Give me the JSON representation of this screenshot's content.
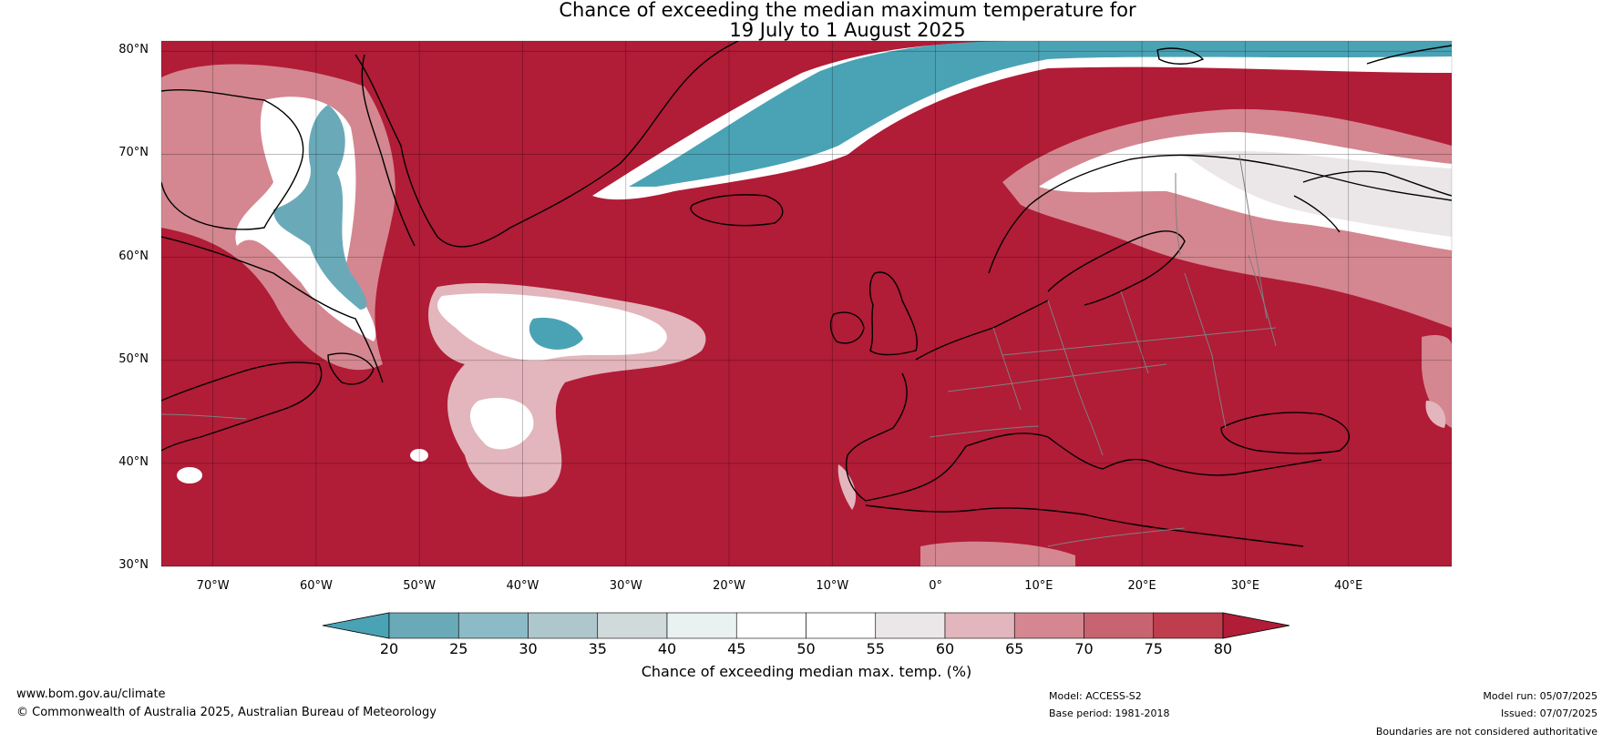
{
  "title": {
    "line1": "Chance of exceeding the median maximum temperature for",
    "line2": "19 July to 1 August 2025"
  },
  "map": {
    "lat_ticks": [
      "80°N",
      "70°N",
      "60°N",
      "50°N",
      "40°N",
      "30°N"
    ],
    "lon_ticks": [
      "70°W",
      "60°W",
      "50°W",
      "40°W",
      "30°W",
      "20°W",
      "10°W",
      "0°",
      "10°E",
      "20°E",
      "30°E",
      "40°E"
    ],
    "lat_range": [
      30,
      81
    ],
    "lon_range": [
      -75,
      50
    ],
    "colors": {
      "high": "#b11c37",
      "low": "#4aa3b5",
      "coast": "#000000",
      "border": "#808080"
    }
  },
  "colorbar": {
    "ticks": [
      "20",
      "25",
      "30",
      "35",
      "40",
      "45",
      "50",
      "55",
      "60",
      "65",
      "70",
      "75",
      "80"
    ],
    "bins": [
      "#4aa3b5",
      "#6aaab8",
      "#8cbac6",
      "#aec7cd",
      "#d0dadb",
      "#e9f1f1",
      "#ffffff",
      "#ffffff",
      "#ebe7e8",
      "#e2b6bc",
      "#d48790",
      "#c8646f",
      "#bf3e4e",
      "#b11c37"
    ],
    "label": "Chance of exceeding median max. temp. (%)"
  },
  "footer": {
    "website": "www.bom.gov.au/climate",
    "copyright": "© Commonwealth of Australia 2025, Australian Bureau of Meteorology",
    "model": "Model: ACCESS-S2",
    "base_period": "Base period: 1981-2018",
    "model_run": "Model run: 05/07/2025",
    "issued": "Issued: 07/07/2025",
    "boundaries": "Boundaries are not considered authoritative"
  }
}
